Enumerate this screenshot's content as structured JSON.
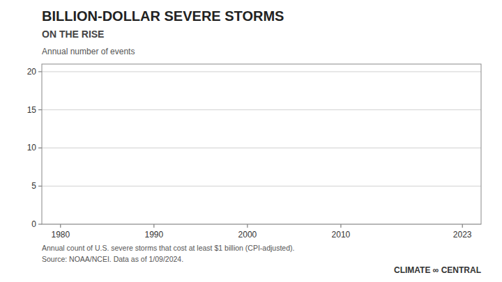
{
  "chart_data": {
    "type": "line",
    "title": "BILLION-DOLLAR SEVERE STORMS",
    "subtitle": "ON THE RISE",
    "y_label": "Annual number of events",
    "annotations": [
      "Annual count of U.S. severe storms that cost at least $1 billion (CPI-adjusted).",
      "Source: NOAA/NCEI. Data as of 1/09/2024.",
      "CLIMATE ∞ CENTRAL"
    ],
    "xlim": [
      1978,
      2025
    ],
    "ylim": [
      0,
      21
    ],
    "xticks": [
      1980,
      1990,
      2000,
      2010,
      2023
    ],
    "yticks": [
      0,
      5,
      10,
      15,
      20
    ],
    "grid": true
  }
}
